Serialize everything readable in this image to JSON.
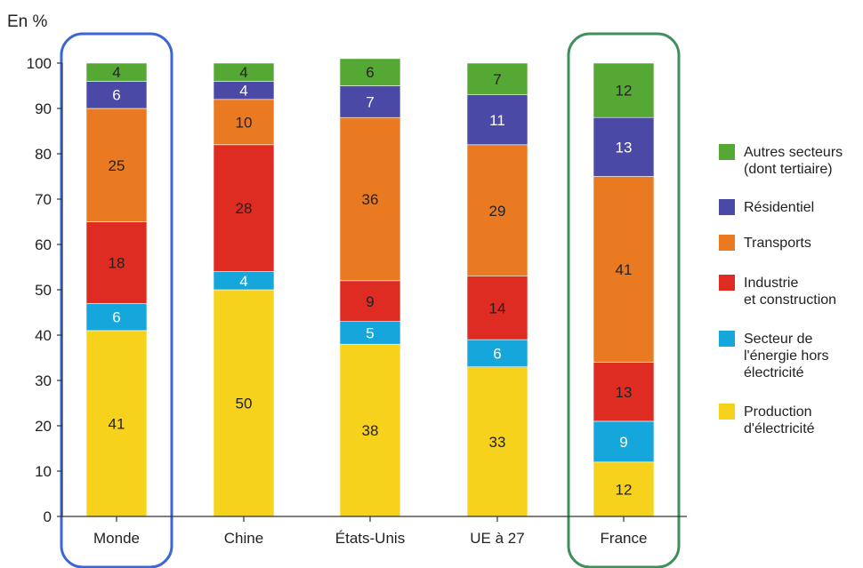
{
  "chart_data": {
    "type": "bar",
    "stacked": true,
    "unit_label": "En %",
    "categories": [
      "Monde",
      "Chine",
      "États-Unis",
      "UE à 27",
      "France"
    ],
    "ylim": [
      0,
      100
    ],
    "yticks": [
      0,
      10,
      20,
      30,
      40,
      50,
      60,
      70,
      80,
      90,
      100
    ],
    "grid": false,
    "legend_position": "right",
    "highlighted_categories": {
      "Monde": "#3a66d6",
      "France": "#3d8f5c"
    },
    "series": [
      {
        "name": "Production d'électricité",
        "legend_lines": [
          "Production",
          "d'électricité"
        ],
        "color": "#f7d21d",
        "values": [
          41,
          50,
          38,
          33,
          12
        ]
      },
      {
        "name": "Secteur de l'énergie hors électricité",
        "legend_lines": [
          "Secteur de",
          "l'énergie hors",
          "électricité"
        ],
        "color": "#15a6dc",
        "values": [
          6,
          4,
          5,
          6,
          9
        ]
      },
      {
        "name": "Industrie et construction",
        "legend_lines": [
          "Industrie",
          "et construction"
        ],
        "color": "#de2c22",
        "values": [
          18,
          28,
          9,
          14,
          13
        ]
      },
      {
        "name": "Transports",
        "legend_lines": [
          "Transports"
        ],
        "color": "#ea7a22",
        "values": [
          25,
          10,
          36,
          29,
          41
        ]
      },
      {
        "name": "Résidentiel",
        "legend_lines": [
          "Résidentiel"
        ],
        "color": "#4a49a6",
        "values": [
          6,
          4,
          7,
          11,
          13
        ]
      },
      {
        "name": "Autres secteurs (dont tertiaire)",
        "legend_lines": [
          "Autres secteurs",
          "(dont tertiaire)"
        ],
        "color": "#55a834",
        "values": [
          4,
          4,
          6,
          7,
          12
        ]
      }
    ]
  }
}
